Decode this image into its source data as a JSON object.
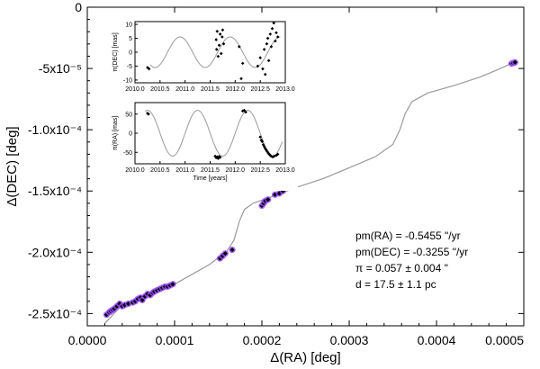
{
  "chart_data": [
    {
      "type": "scatter",
      "panel": "main",
      "xlabel": "Δ(RA) [deg]",
      "ylabel": "Δ(DEC) [deg]",
      "xlim": [
        0.0,
        0.0005
      ],
      "ylim": [
        -0.00026,
        0.0
      ],
      "x_ticks": [
        {
          "value": 0.0,
          "label": "0.0000"
        },
        {
          "value": 0.0001,
          "label": "0.0001"
        },
        {
          "value": 0.0002,
          "label": "0.0002"
        },
        {
          "value": 0.0003,
          "label": "0.0003"
        },
        {
          "value": 0.0004,
          "label": "0.0004"
        },
        {
          "value": 0.0005,
          "label": "0.0005"
        }
      ],
      "y_ticks": [
        {
          "value": 0.0,
          "label": "0"
        },
        {
          "value": -5e-05,
          "label": "-5x10⁻⁵"
        },
        {
          "value": -0.0001,
          "label": "-1.0x10⁻⁴"
        },
        {
          "value": -0.00015,
          "label": "-1.5x10⁻⁴"
        },
        {
          "value": -0.0002,
          "label": "-2.0x10⁻⁴"
        },
        {
          "value": -0.00025,
          "label": "-2.5x10⁻⁴"
        }
      ],
      "fit_curve": [
        [
          2e-05,
          -0.000258
        ],
        [
          4e-05,
          -0.000243
        ],
        [
          6e-05,
          -0.000237
        ],
        [
          8e-05,
          -0.000232
        ],
        [
          0.0001,
          -0.000226
        ],
        [
          0.00012,
          -0.000218
        ],
        [
          0.00014,
          -0.00021
        ],
        [
          0.00016,
          -0.000199
        ],
        [
          0.000168,
          -0.00019
        ],
        [
          0.000174,
          -0.000175
        ],
        [
          0.00018,
          -0.000165
        ],
        [
          0.00019,
          -0.00016
        ],
        [
          0.00021,
          -0.000155
        ],
        [
          0.00024,
          -0.000147
        ],
        [
          0.00027,
          -0.00014
        ],
        [
          0.0003,
          -0.000131
        ],
        [
          0.00033,
          -0.000122
        ],
        [
          0.00035,
          -0.000112
        ],
        [
          0.000358,
          -0.0001
        ],
        [
          0.000364,
          -8.7e-05
        ],
        [
          0.000372,
          -7.7e-05
        ],
        [
          0.00039,
          -7e-05
        ],
        [
          0.00042,
          -6.4e-05
        ],
        [
          0.00045,
          -5.7e-05
        ],
        [
          0.00047,
          -5.1e-05
        ],
        [
          0.000487,
          -4.55e-05
        ]
      ],
      "points": [
        [
          2.2e-05,
          -0.000251
        ],
        [
          2.5e-05,
          -0.000249
        ],
        [
          2.7e-05,
          -0.000248
        ],
        [
          2.9e-05,
          -0.000247
        ],
        [
          3.1e-05,
          -0.000246
        ],
        [
          3.4e-05,
          -0.000244
        ],
        [
          3.7e-05,
          -0.000242
        ],
        [
          4e-05,
          -0.000244
        ],
        [
          4.3e-05,
          -0.000243
        ],
        [
          4.7e-05,
          -0.000242
        ],
        [
          5.2e-05,
          -0.000241
        ],
        [
          5.5e-05,
          -0.00024
        ],
        [
          5.8e-05,
          -0.000238
        ],
        [
          6.1e-05,
          -0.000237
        ],
        [
          6.3e-05,
          -0.000239
        ],
        [
          6.6e-05,
          -0.000236
        ],
        [
          6.9e-05,
          -0.000234
        ],
        [
          7.2e-05,
          -0.000235
        ],
        [
          7.5e-05,
          -0.000233
        ],
        [
          7.7e-05,
          -0.000232
        ],
        [
          8e-05,
          -0.000231
        ],
        [
          8.3e-05,
          -0.00023
        ],
        [
          8.6e-05,
          -0.000229
        ],
        [
          8.9e-05,
          -0.000228
        ],
        [
          9.2e-05,
          -0.000228
        ],
        [
          9.5e-05,
          -0.000227
        ],
        [
          9.8e-05,
          -0.000226
        ],
        [
          0.000152,
          -0.000205
        ],
        [
          0.000155,
          -0.000203
        ],
        [
          0.000158,
          -0.000201
        ],
        [
          0.000166,
          -0.000198
        ],
        [
          0.0002,
          -0.000162
        ],
        [
          0.000202,
          -0.00016
        ],
        [
          0.000204,
          -0.000158
        ],
        [
          0.000207,
          -0.000157
        ],
        [
          0.000215,
          -0.000153
        ],
        [
          0.00022,
          -0.000152
        ],
        [
          0.000224,
          -0.00015
        ],
        [
          0.000486,
          -4.6e-05
        ],
        [
          0.000488,
          -4.55e-05
        ],
        [
          0.00049,
          -4.5e-05
        ]
      ],
      "marker_colors": {
        "point": "#000000",
        "halo": "#9b4dff",
        "fit": "#9a9a9a"
      },
      "annotations": [
        "pm(RA) = -0.5455 \"/yr",
        "pm(DEC) = -0.3255 \"/yr",
        "π = 0.057 ± 0.004 \"",
        "d = 17.5 ± 1.1 pc"
      ]
    },
    {
      "type": "line",
      "panel": "inset-top",
      "ylabel": "π(DEC) [mas]",
      "xlim": [
        2010.0,
        2013.0
      ],
      "ylim": [
        -11,
        11
      ],
      "x_ticks": [
        {
          "value": 2010.0,
          "label": "2010.0"
        },
        {
          "value": 2010.5,
          "label": "2010.5"
        },
        {
          "value": 2011.0,
          "label": "2011.0"
        },
        {
          "value": 2011.5,
          "label": "2011.5"
        },
        {
          "value": 2012.0,
          "label": "2012.0"
        },
        {
          "value": 2012.5,
          "label": "2012.5"
        },
        {
          "value": 2013.0,
          "label": "2013.0"
        }
      ],
      "y_ticks": [
        {
          "value": 10,
          "label": "10"
        },
        {
          "value": 5,
          "label": "5"
        },
        {
          "value": 0,
          "label": "0"
        },
        {
          "value": -5,
          "label": "-5"
        },
        {
          "value": -10,
          "label": "-10"
        }
      ],
      "model": {
        "amplitude": 5.5,
        "period": 1.0,
        "phase_peak": 2010.9,
        "x_start": 2010.3,
        "x_end": 2012.9
      },
      "points": [
        [
          2010.25,
          -5.5
        ],
        [
          2010.28,
          -6.0
        ],
        [
          2011.62,
          4.5
        ],
        [
          2011.63,
          1.0
        ],
        [
          2011.64,
          7.5
        ],
        [
          2011.66,
          -1.5
        ],
        [
          2011.68,
          2.5
        ],
        [
          2011.7,
          6.5
        ],
        [
          2011.72,
          -0.5
        ],
        [
          2011.74,
          5.5
        ],
        [
          2011.75,
          8.0
        ],
        [
          2011.77,
          3.0
        ],
        [
          2012.08,
          2.0
        ],
        [
          2012.12,
          -9.5
        ],
        [
          2012.15,
          -4.0
        ],
        [
          2012.45,
          -5.0
        ],
        [
          2012.5,
          -2.0
        ],
        [
          2012.55,
          -6.0
        ],
        [
          2012.58,
          1.0
        ],
        [
          2012.6,
          -8.0
        ],
        [
          2012.63,
          3.0
        ],
        [
          2012.65,
          5.0
        ],
        [
          2012.67,
          -3.0
        ],
        [
          2012.7,
          6.5
        ],
        [
          2012.72,
          2.0
        ],
        [
          2012.74,
          8.5
        ],
        [
          2012.77,
          10.5
        ],
        [
          2012.8,
          4.0
        ],
        [
          2012.82,
          7.0
        ],
        [
          2012.85,
          5.5
        ]
      ]
    },
    {
      "type": "line",
      "panel": "inset-bottom",
      "xlabel": "Time [years]",
      "ylabel": "π(RA) [mas]",
      "xlim": [
        2010.0,
        2013.0
      ],
      "ylim": [
        -80,
        80
      ],
      "x_ticks": [
        {
          "value": 2010.0,
          "label": "2010.0"
        },
        {
          "value": 2010.5,
          "label": "2010.5"
        },
        {
          "value": 2011.0,
          "label": "2011.0"
        },
        {
          "value": 2011.5,
          "label": "2011.5"
        },
        {
          "value": 2012.0,
          "label": "2012.0"
        },
        {
          "value": 2012.5,
          "label": "2012.5"
        },
        {
          "value": 2013.0,
          "label": "2013.0"
        }
      ],
      "y_ticks": [
        {
          "value": 50,
          "label": "50"
        },
        {
          "value": 0,
          "label": "0"
        },
        {
          "value": -50,
          "label": "-50"
        }
      ],
      "model": {
        "amplitude": 60,
        "period": 1.0,
        "phase_peak": 2011.25,
        "x_start": 2010.2,
        "x_end": 2012.95
      },
      "points": [
        [
          2010.25,
          52
        ],
        [
          2010.27,
          50
        ],
        [
          2011.6,
          -60
        ],
        [
          2011.62,
          -64
        ],
        [
          2011.64,
          -62
        ],
        [
          2011.66,
          -66
        ],
        [
          2011.68,
          -61
        ],
        [
          2011.7,
          -63
        ],
        [
          2012.15,
          58
        ],
        [
          2012.18,
          60
        ],
        [
          2012.21,
          55
        ],
        [
          2012.5,
          -10
        ],
        [
          2012.52,
          -18
        ],
        [
          2012.54,
          -22
        ],
        [
          2012.56,
          -30
        ],
        [
          2012.58,
          -35
        ],
        [
          2012.6,
          -40
        ],
        [
          2012.62,
          -44
        ],
        [
          2012.64,
          -48
        ],
        [
          2012.66,
          -52
        ],
        [
          2012.68,
          -55
        ],
        [
          2012.7,
          -58
        ],
        [
          2012.72,
          -60
        ],
        [
          2012.75,
          -62
        ],
        [
          2012.78,
          -60
        ],
        [
          2012.82,
          -58
        ],
        [
          2012.85,
          -55
        ]
      ]
    }
  ]
}
